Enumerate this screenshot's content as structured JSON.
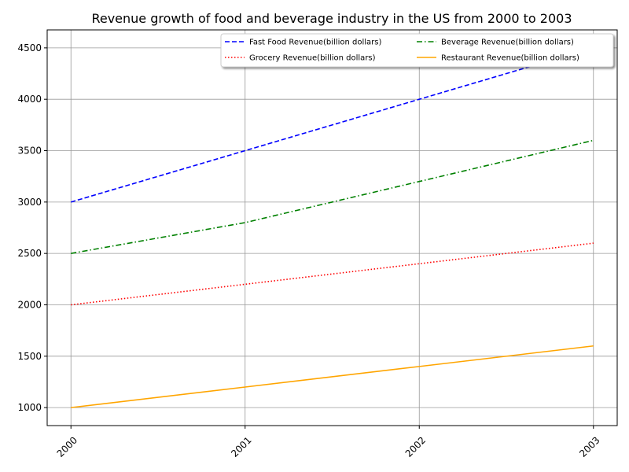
{
  "chart_data": {
    "type": "line",
    "title": "Revenue growth of food and beverage industry in the US from 2000 to 2003",
    "xlabel": "",
    "ylabel": "",
    "categories": [
      "2000",
      "2001",
      "2002",
      "2003"
    ],
    "ylim": [
      825,
      4675
    ],
    "yticks": [
      1000,
      1500,
      2000,
      2500,
      3000,
      3500,
      4000,
      4500
    ],
    "grid": true,
    "grid_color": "#999999",
    "legend_position": "upper right",
    "legend_columns": 2,
    "series": [
      {
        "name": "Fast Food Revenue(billion dollars)",
        "values": [
          3000,
          3500,
          4000,
          4500
        ],
        "color": "#0000ff",
        "linestyle": "dashed"
      },
      {
        "name": "Grocery Revenue(billion dollars)",
        "values": [
          2000,
          2200,
          2400,
          2600
        ],
        "color": "#ff0000",
        "linestyle": "dotted"
      },
      {
        "name": "Beverage Revenue(billion dollars)",
        "values": [
          2500,
          2800,
          3200,
          3600
        ],
        "color": "#008000",
        "linestyle": "dashdot"
      },
      {
        "name": "Restaurant Revenue(billion dollars)",
        "values": [
          1000,
          1200,
          1400,
          1600
        ],
        "color": "#ffa500",
        "linestyle": "solid"
      }
    ]
  }
}
